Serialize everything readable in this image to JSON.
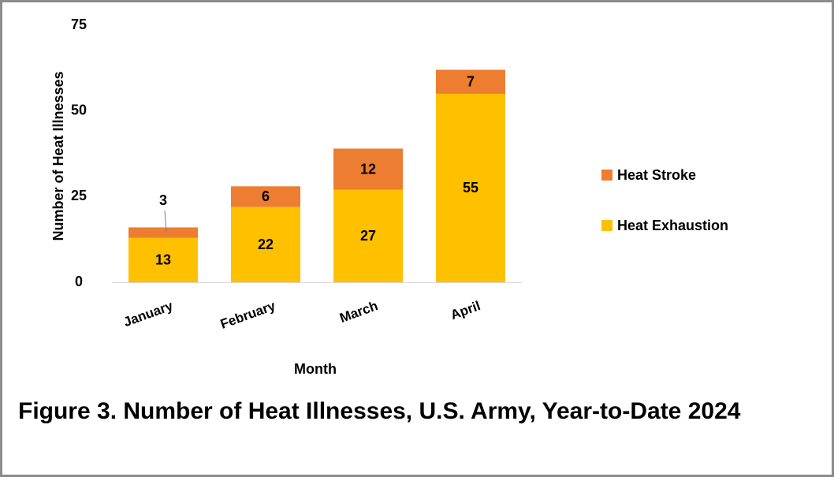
{
  "chart_data": {
    "type": "bar",
    "stacked": true,
    "title": "Figure 3. Number of Heat Illnesses, U.S. Army, Year-to-Date 2024",
    "x_label": "Month",
    "y_label": "Number of Heat Illnesses",
    "categories": [
      "January",
      "February",
      "March",
      "April"
    ],
    "series": [
      {
        "name": "Heat Exhaustion",
        "color": "#FFC000",
        "values": [
          13,
          22,
          27,
          55
        ]
      },
      {
        "name": "Heat Stroke",
        "color": "#ED7D31",
        "values": [
          3,
          6,
          12,
          7
        ]
      }
    ],
    "ylim": [
      0,
      75
    ],
    "yticks": [
      0,
      25,
      50,
      75
    ],
    "grid": false,
    "legend": "right"
  }
}
